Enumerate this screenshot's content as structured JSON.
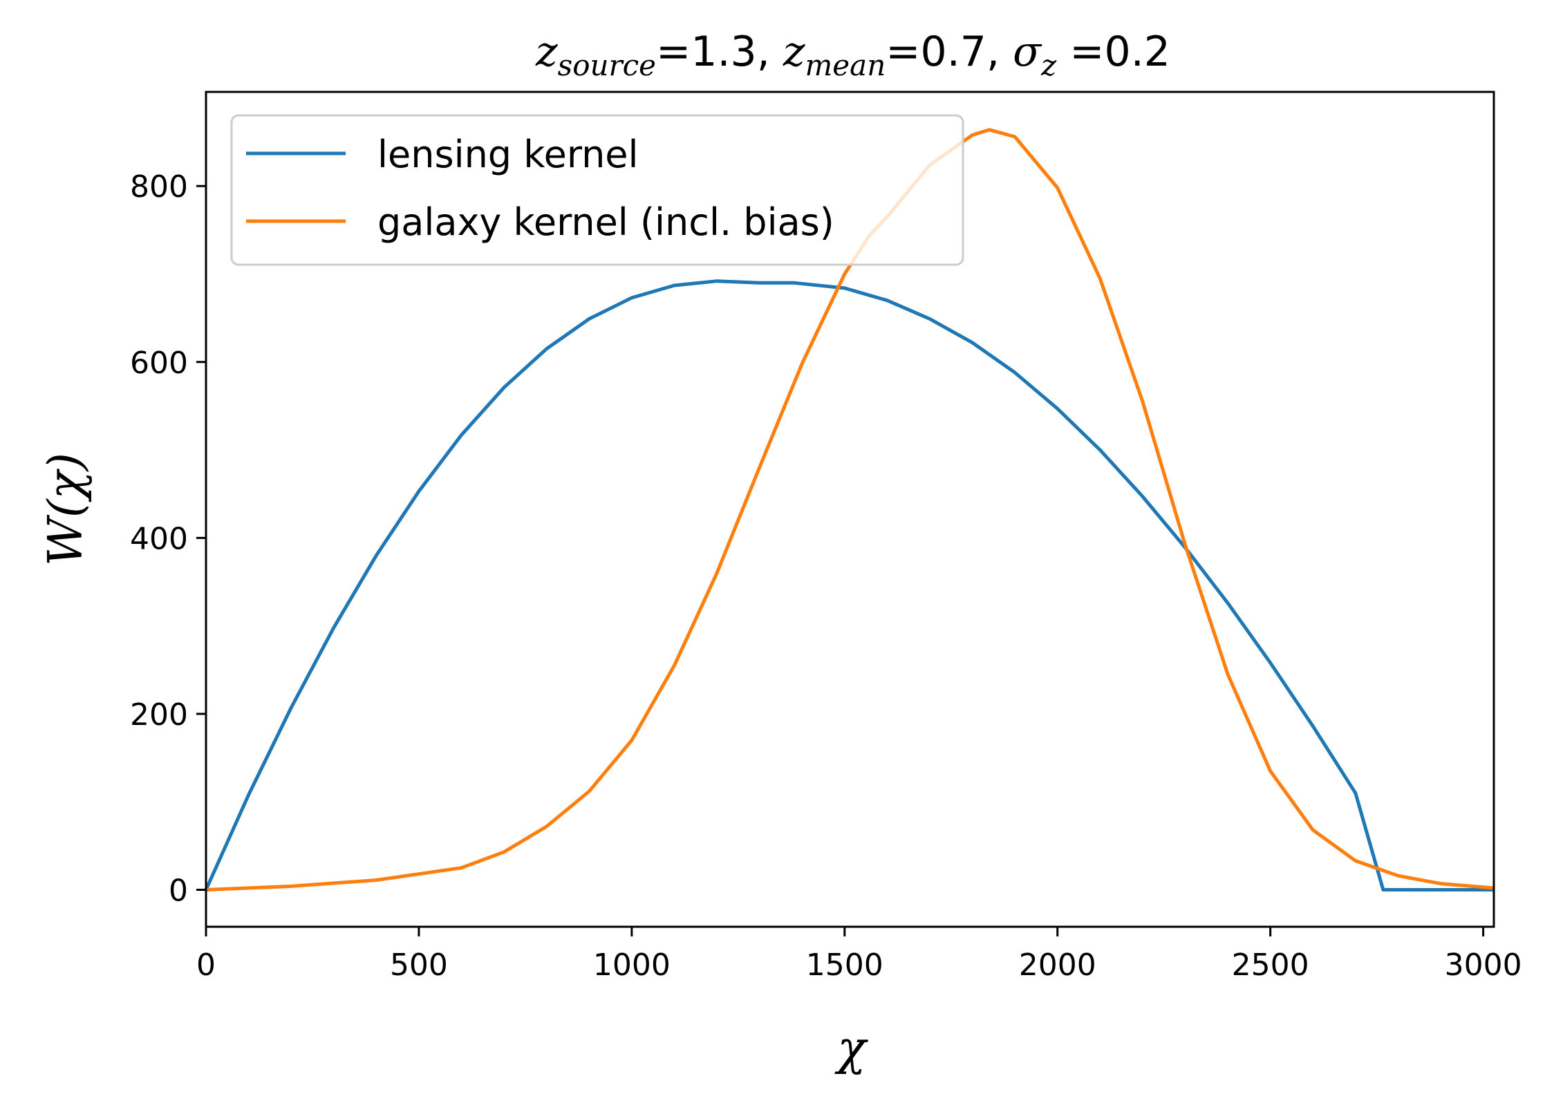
{
  "chart_data": {
    "type": "line",
    "title": {
      "var1": "z",
      "sub1": "source",
      "eq1": "=1.3, ",
      "var2": "z",
      "sub2": "mean",
      "eq2": "=0.7, ",
      "var3": "σ",
      "sub3": "z",
      "eq3": " =0.2"
    },
    "xlabel": "χ",
    "ylabel": "W(χ)",
    "xlim": [
      0,
      3025
    ],
    "ylim": [
      -42,
      907
    ],
    "xticks": [
      0,
      500,
      1000,
      1500,
      2000,
      2500,
      3000
    ],
    "yticks": [
      0,
      200,
      400,
      600,
      800
    ],
    "grid": false,
    "legend_position": "upper-left",
    "series": [
      {
        "name": "lensing kernel",
        "color": "#1f77b4",
        "x": [
          0,
          100,
          200,
          300,
          400,
          500,
          600,
          700,
          800,
          900,
          1000,
          1100,
          1200,
          1300,
          1380,
          1500,
          1600,
          1700,
          1800,
          1900,
          2000,
          2100,
          2200,
          2300,
          2400,
          2500,
          2600,
          2700,
          2765,
          2800,
          2900,
          3025
        ],
        "y": [
          0,
          108,
          207,
          298,
          380,
          453,
          517,
          571,
          615,
          649,
          673,
          687,
          692,
          690,
          690,
          684,
          670,
          649,
          622,
          588,
          547,
          500,
          447,
          389,
          326,
          258,
          186,
          110,
          0,
          0,
          0,
          0
        ]
      },
      {
        "name": "galaxy kernel (incl. bias)",
        "color": "#ff7f0e",
        "x": [
          0,
          200,
          400,
          600,
          700,
          800,
          900,
          1000,
          1100,
          1200,
          1300,
          1400,
          1500,
          1560,
          1600,
          1700,
          1800,
          1840,
          1900,
          2000,
          2100,
          2200,
          2300,
          2400,
          2500,
          2600,
          2700,
          2800,
          2900,
          3025
        ],
        "y": [
          0,
          4,
          11,
          25,
          43,
          72,
          112,
          170,
          255,
          360,
          480,
          598,
          700,
          745,
          765,
          824,
          858,
          864,
          856,
          798,
          695,
          555,
          392,
          245,
          135,
          68,
          33,
          16,
          7,
          2
        ]
      }
    ]
  }
}
